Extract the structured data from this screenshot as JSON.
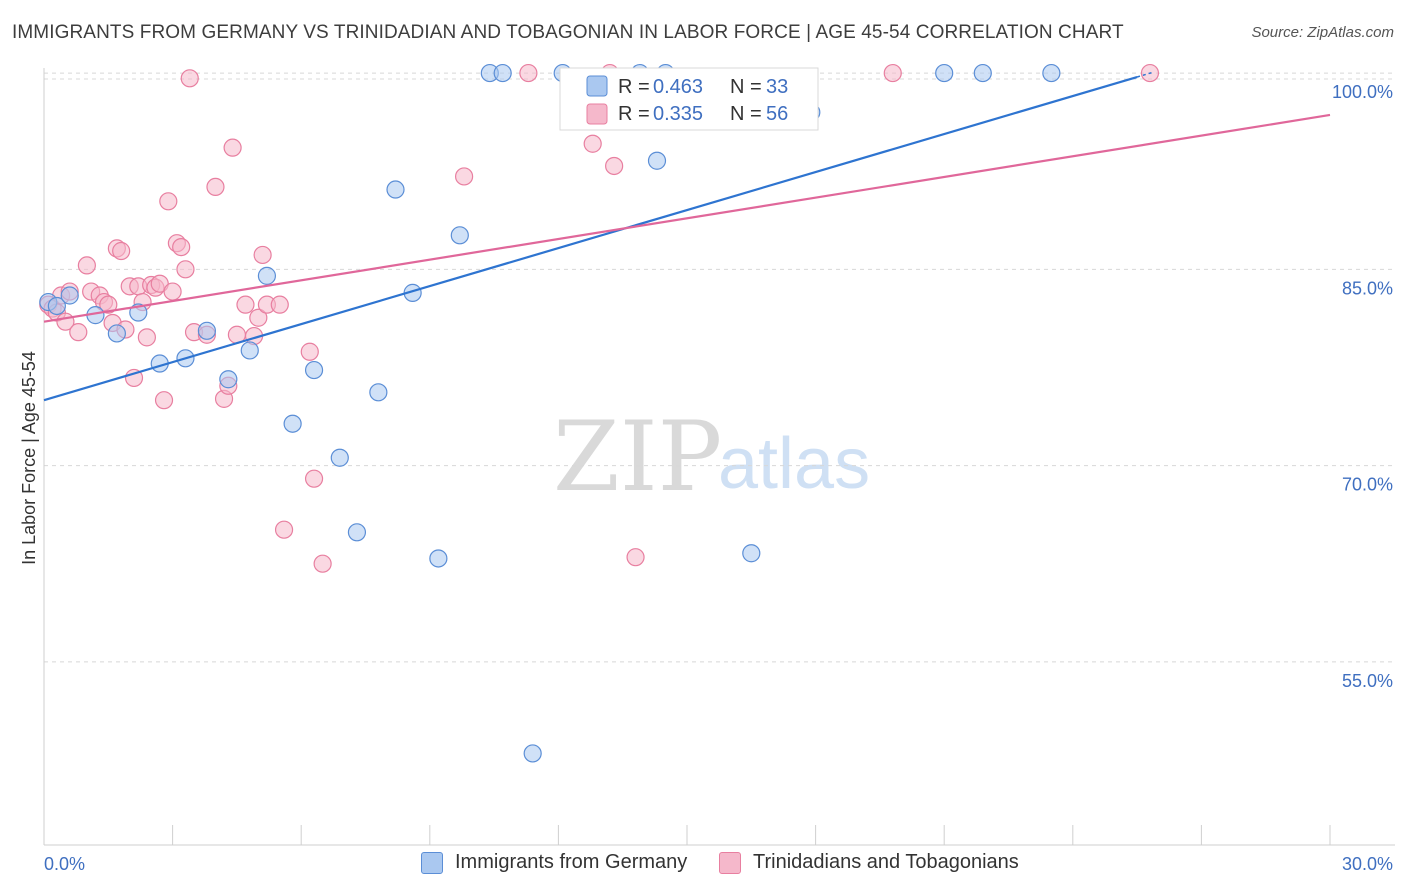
{
  "title": "IMMIGRANTS FROM GERMANY VS TRINIDADIAN AND TOBAGONIAN IN LABOR FORCE | AGE 45-54 CORRELATION CHART",
  "source": "Source: ZipAtlas.com",
  "watermark": {
    "zip": "ZIP",
    "atlas": "atlas"
  },
  "colors": {
    "blue_fill": "#aac8f0",
    "blue_stroke": "#5b8ed6",
    "blue_line": "#2e74d0",
    "pink_fill": "#f5b8cb",
    "pink_stroke": "#e87fa0",
    "pink_line": "#e0679a",
    "grid": "#d8d8d8",
    "tick_label": "#3f6fc0"
  },
  "legend": {
    "series": [
      {
        "r_label": "R =",
        "r_value": "0.463",
        "n_label": "N =",
        "n_value": "33"
      },
      {
        "r_label": "R =",
        "r_value": "0.335",
        "n_label": "N =",
        "n_value": "56"
      }
    ]
  },
  "bottom_legend": [
    "Immigrants from Germany",
    "Trinidadians and Tobagonians"
  ],
  "chart_data": {
    "type": "scatter",
    "title": "IMMIGRANTS FROM GERMANY VS TRINIDADIAN AND TOBAGONIAN IN LABOR FORCE | AGE 45-54 CORRELATION CHART",
    "xlabel": "",
    "ylabel": "In Labor Force | Age 45-54",
    "xlim": [
      0,
      30
    ],
    "ylim": [
      41,
      101
    ],
    "x_tick_labels": [
      "0.0%",
      "30.0%"
    ],
    "y_ticks": [
      55,
      70,
      85,
      100
    ],
    "y_tick_labels": [
      "55.0%",
      "70.0%",
      "85.0%",
      "100.0%"
    ],
    "series": [
      {
        "name": "Immigrants from Germany",
        "color": "#5b8ed6",
        "points": [
          [
            0.1,
            82.5
          ],
          [
            0.3,
            82.2
          ],
          [
            0.6,
            83.0
          ],
          [
            1.2,
            81.5
          ],
          [
            1.7,
            80.1
          ],
          [
            2.2,
            81.7
          ],
          [
            2.7,
            77.8
          ],
          [
            3.3,
            78.2
          ],
          [
            3.8,
            80.3
          ],
          [
            4.3,
            76.6
          ],
          [
            4.8,
            78.8
          ],
          [
            5.2,
            84.5
          ],
          [
            5.8,
            73.2
          ],
          [
            6.3,
            77.3
          ],
          [
            6.9,
            70.6
          ],
          [
            7.3,
            64.9
          ],
          [
            7.8,
            75.6
          ],
          [
            8.2,
            91.1
          ],
          [
            8.6,
            83.2
          ],
          [
            9.2,
            62.9
          ],
          [
            9.7,
            87.6
          ],
          [
            10.4,
            100.0
          ],
          [
            10.7,
            100.0
          ],
          [
            11.4,
            48.0
          ],
          [
            12.1,
            100.0
          ],
          [
            13.9,
            100.0
          ],
          [
            14.5,
            100.0
          ],
          [
            14.3,
            93.3
          ],
          [
            16.5,
            63.3
          ],
          [
            17.9,
            97.0
          ],
          [
            21.0,
            100.0
          ],
          [
            21.9,
            100.0
          ],
          [
            23.5,
            100.0
          ]
        ],
        "trend": {
          "x": [
            0,
            25.5
          ],
          "y": [
            75.0,
            99.7
          ]
        }
      },
      {
        "name": "Trinidadians and Tobagonians",
        "color": "#e87fa0",
        "points": [
          [
            0.1,
            82.3
          ],
          [
            0.2,
            82.0
          ],
          [
            0.3,
            81.7
          ],
          [
            0.4,
            83.0
          ],
          [
            0.5,
            81.0
          ],
          [
            0.6,
            83.3
          ],
          [
            0.8,
            80.2
          ],
          [
            1.0,
            85.3
          ],
          [
            1.1,
            83.3
          ],
          [
            1.3,
            83.0
          ],
          [
            1.4,
            82.5
          ],
          [
            1.5,
            82.3
          ],
          [
            1.6,
            80.9
          ],
          [
            1.7,
            86.6
          ],
          [
            1.8,
            86.4
          ],
          [
            1.9,
            80.4
          ],
          [
            2.0,
            83.7
          ],
          [
            2.1,
            76.7
          ],
          [
            2.2,
            83.7
          ],
          [
            2.3,
            82.5
          ],
          [
            2.4,
            79.8
          ],
          [
            2.5,
            83.8
          ],
          [
            2.6,
            83.6
          ],
          [
            2.7,
            83.9
          ],
          [
            2.8,
            75.0
          ],
          [
            2.9,
            90.2
          ],
          [
            3.0,
            83.3
          ],
          [
            3.1,
            87.0
          ],
          [
            3.2,
            86.7
          ],
          [
            3.3,
            85.0
          ],
          [
            3.4,
            99.6
          ],
          [
            3.5,
            80.2
          ],
          [
            3.8,
            80.0
          ],
          [
            4.0,
            91.3
          ],
          [
            4.2,
            75.1
          ],
          [
            4.3,
            76.1
          ],
          [
            4.4,
            94.3
          ],
          [
            4.5,
            80.0
          ],
          [
            4.7,
            82.3
          ],
          [
            4.9,
            79.9
          ],
          [
            5.0,
            81.3
          ],
          [
            5.1,
            86.1
          ],
          [
            5.2,
            82.3
          ],
          [
            5.5,
            82.3
          ],
          [
            5.6,
            65.1
          ],
          [
            6.2,
            78.7
          ],
          [
            6.3,
            69.0
          ],
          [
            6.5,
            62.5
          ],
          [
            9.8,
            92.1
          ],
          [
            11.3,
            100.0
          ],
          [
            12.8,
            94.6
          ],
          [
            13.3,
            92.9
          ],
          [
            13.8,
            63.0
          ],
          [
            19.8,
            100.0
          ],
          [
            25.8,
            100.0
          ],
          [
            13.2,
            100.0
          ]
        ],
        "trend": {
          "x": [
            0,
            30
          ],
          "y": [
            81.0,
            96.8
          ]
        }
      }
    ]
  }
}
